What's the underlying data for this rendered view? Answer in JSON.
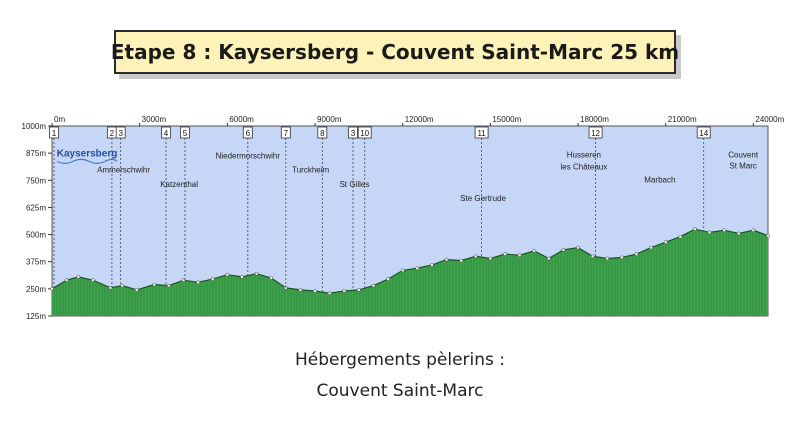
{
  "title": "Etape 8 :  Kaysersberg - Couvent Saint-Marc  25 km",
  "lodging": {
    "heading": "Hébergements pèlerins :",
    "place": "Couvent Saint-Marc"
  },
  "colors": {
    "sky": "#c6d6f6",
    "terrain": "#3fa34d",
    "terrain_dark": "#1f6a2a",
    "title_bg": "#fdf3b8"
  },
  "chart_data": {
    "type": "area",
    "title": "",
    "xlabel": "",
    "ylabel": "",
    "xlim": [
      0,
      24500
    ],
    "ylim": [
      125,
      1000
    ],
    "x_ticks": [
      {
        "value": 0,
        "label": "0m"
      },
      {
        "value": 3000,
        "label": "3000m"
      },
      {
        "value": 6000,
        "label": "6000m"
      },
      {
        "value": 9000,
        "label": "9000m"
      },
      {
        "value": 12000,
        "label": "12000m"
      },
      {
        "value": 15000,
        "label": "15000m"
      },
      {
        "value": 18000,
        "label": "18000m"
      },
      {
        "value": 21000,
        "label": "21000m"
      },
      {
        "value": 24000,
        "label": "24000m"
      }
    ],
    "y_ticks": [
      {
        "value": 1000,
        "label": "1000m"
      },
      {
        "value": 875,
        "label": "875m"
      },
      {
        "value": 750,
        "label": "750m"
      },
      {
        "value": 625,
        "label": "625m"
      },
      {
        "value": 500,
        "label": "500m"
      },
      {
        "value": 375,
        "label": "375m"
      },
      {
        "value": 250,
        "label": "250m"
      },
      {
        "value": 125,
        "label": "125m"
      }
    ],
    "waypoints": [
      {
        "num": "1",
        "x": 0
      },
      {
        "num": "2",
        "x": 2050
      },
      {
        "num": "3",
        "x": 2350
      },
      {
        "num": "4",
        "x": 3900
      },
      {
        "num": "5",
        "x": 4550
      },
      {
        "num": "6",
        "x": 6700
      },
      {
        "num": "7",
        "x": 8000
      },
      {
        "num": "8",
        "x": 9250
      },
      {
        "num": "3",
        "x": 10300
      },
      {
        "num": "10",
        "x": 10700
      },
      {
        "num": "11",
        "x": 14700
      },
      {
        "num": "12",
        "x": 18600
      },
      {
        "num": "14",
        "x": 22300
      }
    ],
    "places": [
      {
        "name": "Kaysersberg",
        "x": 1200,
        "y": 860,
        "highlight": true
      },
      {
        "name": "Ammerschwihr",
        "x": 2450,
        "y": 785
      },
      {
        "name": "Niedermorschwihr",
        "x": 6700,
        "y": 850
      },
      {
        "name": "Katzenthal",
        "x": 4350,
        "y": 720
      },
      {
        "name": "Turckheim",
        "x": 8850,
        "y": 785
      },
      {
        "name": "St Gilles",
        "x": 10350,
        "y": 720
      },
      {
        "name": "Ste Gertrude",
        "x": 14750,
        "y": 655
      },
      {
        "name": "Husseren",
        "x": 18200,
        "y": 855
      },
      {
        "name": "les Châteaux",
        "x": 18200,
        "y": 800
      },
      {
        "name": "Marbach",
        "x": 20800,
        "y": 740
      },
      {
        "name": "Couvent",
        "x": 23650,
        "y": 855
      },
      {
        "name": "St Marc",
        "x": 23650,
        "y": 805
      }
    ],
    "elevation": {
      "x": [
        0,
        500,
        900,
        1400,
        2000,
        2400,
        2900,
        3500,
        4000,
        4500,
        5000,
        5500,
        6000,
        6500,
        7000,
        7500,
        8000,
        8500,
        9000,
        9500,
        10000,
        10500,
        11000,
        11500,
        12000,
        12500,
        13000,
        13500,
        14000,
        14500,
        15000,
        15500,
        16000,
        16500,
        17000,
        17500,
        18000,
        18500,
        19000,
        19500,
        20000,
        20500,
        21000,
        21500,
        22000,
        22500,
        23000,
        23500,
        24000,
        24500
      ],
      "y": [
        250,
        290,
        305,
        290,
        255,
        265,
        245,
        270,
        265,
        290,
        280,
        295,
        315,
        305,
        320,
        300,
        255,
        245,
        240,
        230,
        240,
        245,
        265,
        295,
        335,
        345,
        360,
        385,
        380,
        400,
        390,
        410,
        405,
        425,
        390,
        430,
        440,
        400,
        390,
        395,
        410,
        440,
        465,
        490,
        525,
        510,
        520,
        505,
        520,
        495
      ]
    }
  }
}
